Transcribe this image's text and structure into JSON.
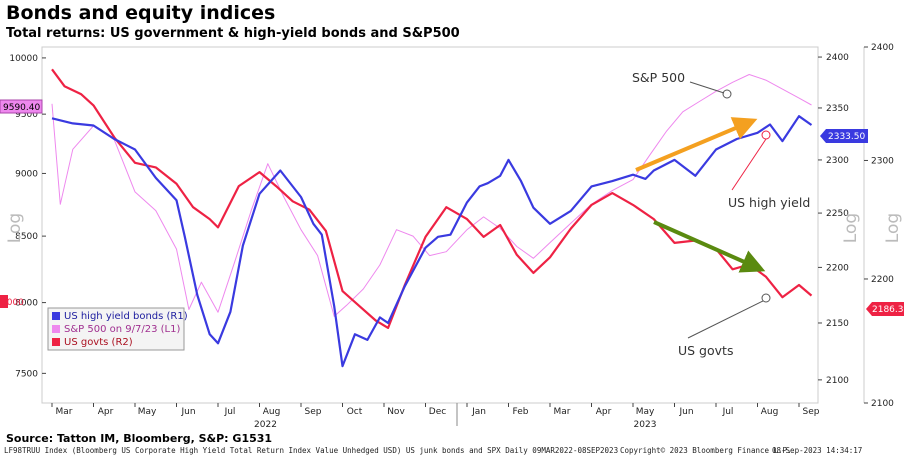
{
  "header": {
    "title": "Bonds and equity indices",
    "subtitle": "Total returns: US government & high-yield bonds and S&P500"
  },
  "source": "Source: Tatton IM, Bloomberg, S&P: G1531",
  "footer": {
    "left": "LF98TRUU Index (Bloomberg US Corporate High Yield Total Return Index Value Unhedged USD) US junk bonds and SPX  Daily 09MAR2022-08SEP2023",
    "center": "Copyright© 2023 Bloomberg Finance L.P.",
    "right": "08-Sep-2023 14:34:17"
  },
  "chart_data": {
    "type": "line",
    "x_labels": [
      "Mar",
      "Apr",
      "May",
      "Jun",
      "Jul",
      "Aug",
      "Sep",
      "Oct",
      "Nov",
      "Dec",
      "Jan",
      "Feb",
      "Mar",
      "Apr",
      "May",
      "Jun",
      "Jul",
      "Aug",
      "Sep"
    ],
    "year_labels": [
      "2022",
      "2023"
    ],
    "axes": {
      "left": {
        "label": "Log",
        "ticks": [
          7500,
          8000,
          8500,
          9000,
          9500,
          10000
        ],
        "range": [
          7300,
          10100
        ]
      },
      "right1": {
        "label": "Log",
        "ticks": [
          2100,
          2150,
          2200,
          2250,
          2300,
          2350,
          2400
        ],
        "range": [
          2080,
          2410
        ]
      },
      "right2": {
        "label": "Log",
        "ticks": [
          2100,
          2200,
          2300,
          2400
        ],
        "range": [
          2100,
          2400
        ]
      }
    },
    "series": [
      {
        "name": "US high yield bonds (R1)",
        "color": "#3a3ae0",
        "axis": "right1",
        "last_value": "2333.50",
        "points": [
          [
            0,
            2340
          ],
          [
            0.5,
            2335
          ],
          [
            1,
            2333
          ],
          [
            1.5,
            2320
          ],
          [
            2,
            2310
          ],
          [
            2.5,
            2283
          ],
          [
            3,
            2262
          ],
          [
            3.2,
            2228
          ],
          [
            3.5,
            2175
          ],
          [
            3.8,
            2140
          ],
          [
            4,
            2132
          ],
          [
            4.3,
            2160
          ],
          [
            4.6,
            2220
          ],
          [
            5,
            2268
          ],
          [
            5.5,
            2290
          ],
          [
            6,
            2265
          ],
          [
            6.3,
            2240
          ],
          [
            6.5,
            2230
          ],
          [
            6.8,
            2165
          ],
          [
            7,
            2112
          ],
          [
            7.3,
            2140
          ],
          [
            7.6,
            2135
          ],
          [
            7.9,
            2155
          ],
          [
            8.1,
            2150
          ],
          [
            8.5,
            2183
          ],
          [
            9,
            2218
          ],
          [
            9.3,
            2228
          ],
          [
            9.6,
            2230
          ],
          [
            10,
            2260
          ],
          [
            10.3,
            2275
          ],
          [
            10.5,
            2278
          ],
          [
            10.8,
            2285
          ],
          [
            11,
            2300
          ],
          [
            11.3,
            2280
          ],
          [
            11.6,
            2255
          ],
          [
            12,
            2240
          ],
          [
            12.5,
            2252
          ],
          [
            13,
            2275
          ],
          [
            13.5,
            2280
          ],
          [
            14,
            2286
          ],
          [
            14.3,
            2282
          ],
          [
            14.5,
            2290
          ],
          [
            15,
            2300
          ],
          [
            15.5,
            2285
          ],
          [
            16,
            2310
          ],
          [
            16.5,
            2320
          ],
          [
            17,
            2326
          ],
          [
            17.3,
            2334
          ],
          [
            17.6,
            2318
          ],
          [
            18,
            2342
          ],
          [
            18.3,
            2333.5
          ]
        ]
      },
      {
        "name": "S&P 500 on 9/7/23 (L1)",
        "color": "#ee88ee",
        "axis": "left",
        "points": [
          [
            0,
            9590
          ],
          [
            0.2,
            8750
          ],
          [
            0.5,
            9200
          ],
          [
            1,
            9400
          ],
          [
            1.5,
            9280
          ],
          [
            2,
            8850
          ],
          [
            2.5,
            8700
          ],
          [
            3,
            8400
          ],
          [
            3.3,
            7950
          ],
          [
            3.6,
            8150
          ],
          [
            4,
            7930
          ],
          [
            4.4,
            8300
          ],
          [
            4.8,
            8700
          ],
          [
            5.2,
            9080
          ],
          [
            5.6,
            8800
          ],
          [
            6,
            8550
          ],
          [
            6.4,
            8350
          ],
          [
            6.8,
            7900
          ],
          [
            7.1,
            7980
          ],
          [
            7.5,
            8100
          ],
          [
            7.9,
            8280
          ],
          [
            8.3,
            8550
          ],
          [
            8.7,
            8500
          ],
          [
            9.1,
            8350
          ],
          [
            9.5,
            8380
          ],
          [
            10,
            8550
          ],
          [
            10.4,
            8650
          ],
          [
            10.8,
            8560
          ],
          [
            11.2,
            8420
          ],
          [
            11.6,
            8330
          ],
          [
            12,
            8450
          ],
          [
            12.5,
            8600
          ],
          [
            13,
            8750
          ],
          [
            13.5,
            8860
          ],
          [
            14,
            8950
          ],
          [
            14.4,
            9150
          ],
          [
            14.8,
            9350
          ],
          [
            15.2,
            9520
          ],
          [
            15.6,
            9610
          ],
          [
            16,
            9700
          ],
          [
            16.4,
            9780
          ],
          [
            16.8,
            9850
          ],
          [
            17.2,
            9800
          ],
          [
            17.6,
            9720
          ],
          [
            18,
            9640
          ],
          [
            18.3,
            9580
          ]
        ]
      },
      {
        "name": "US govts (R2)",
        "color": "#ee2244",
        "axis": "right2",
        "last_value": "2186.36",
        "points": [
          [
            0,
            2380
          ],
          [
            0.3,
            2365
          ],
          [
            0.7,
            2358
          ],
          [
            1,
            2348
          ],
          [
            1.5,
            2320
          ],
          [
            2,
            2298
          ],
          [
            2.5,
            2294
          ],
          [
            3,
            2280
          ],
          [
            3.4,
            2260
          ],
          [
            3.8,
            2250
          ],
          [
            4,
            2243
          ],
          [
            4.5,
            2278
          ],
          [
            5,
            2290
          ],
          [
            5.4,
            2278
          ],
          [
            5.8,
            2265
          ],
          [
            6.2,
            2258
          ],
          [
            6.6,
            2240
          ],
          [
            7,
            2190
          ],
          [
            7.4,
            2178
          ],
          [
            7.8,
            2166
          ],
          [
            8.1,
            2160
          ],
          [
            8.5,
            2195
          ],
          [
            9,
            2235
          ],
          [
            9.5,
            2260
          ],
          [
            10,
            2250
          ],
          [
            10.4,
            2235
          ],
          [
            10.8,
            2245
          ],
          [
            11.2,
            2220
          ],
          [
            11.6,
            2205
          ],
          [
            12,
            2218
          ],
          [
            12.5,
            2242
          ],
          [
            13,
            2262
          ],
          [
            13.5,
            2272
          ],
          [
            14,
            2262
          ],
          [
            14.5,
            2250
          ],
          [
            15,
            2230
          ],
          [
            15.5,
            2232
          ],
          [
            16,
            2225
          ],
          [
            16.4,
            2208
          ],
          [
            16.8,
            2212
          ],
          [
            17.2,
            2202
          ],
          [
            17.6,
            2185
          ],
          [
            18,
            2195
          ],
          [
            18.3,
            2186.36
          ]
        ]
      }
    ],
    "left_tag": "9590.40",
    "partial_left_tick": "8000",
    "annotations": [
      "S&P 500",
      "US high yield",
      "US govts"
    ],
    "arrows": [
      {
        "color": "#f4a020"
      },
      {
        "color": "#5a8a10"
      }
    ],
    "legend_position": "bottom-left",
    "grid": false
  }
}
